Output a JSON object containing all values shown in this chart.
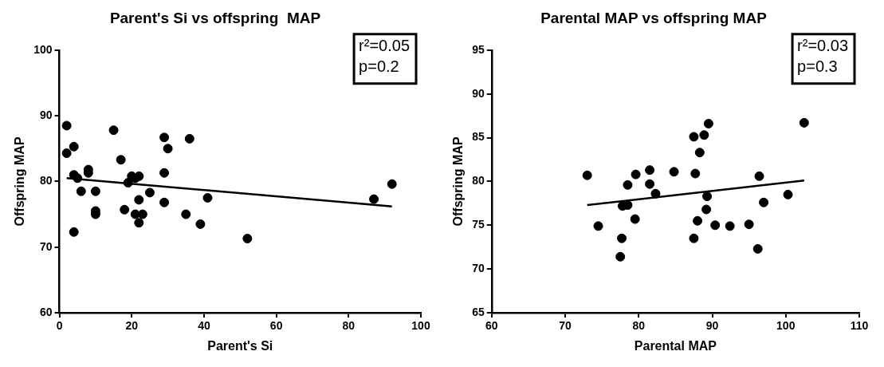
{
  "chart_data": [
    {
      "type": "scatter",
      "title": "Parent's Si vs offspring  MAP",
      "xlabel": "Parent's Si",
      "ylabel": "Offspring MAP",
      "xlim": [
        0,
        100
      ],
      "xticks": [
        0,
        20,
        40,
        60,
        80,
        100
      ],
      "ylim": [
        60,
        100
      ],
      "yticks": [
        60,
        70,
        80,
        90,
        100
      ],
      "grid": false,
      "legend": false,
      "annotations": [
        "r²=0.05",
        "p=0.2"
      ],
      "series": [
        {
          "marker": "circle",
          "color": "#000000",
          "x": [
            2,
            2,
            4,
            4,
            4,
            5,
            6,
            8,
            8,
            10,
            10,
            10,
            15,
            17,
            18,
            19,
            20,
            21,
            21,
            22,
            22,
            22,
            23,
            25,
            29,
            29,
            29,
            30,
            35,
            36,
            39,
            41,
            52,
            87,
            92
          ],
          "values": [
            88.5,
            84.3,
            85.3,
            72.3,
            81,
            80.5,
            78.5,
            81.8,
            81.3,
            75.5,
            75,
            78.5,
            87.8,
            83.3,
            75.7,
            79.8,
            80.8,
            80.5,
            75,
            73.7,
            77.2,
            80.8,
            75,
            78.3,
            86.7,
            76.8,
            81.3,
            85,
            75,
            86.5,
            73.5,
            77.5,
            71.3,
            77.3,
            79.6
          ]
        },
        {
          "type": "line",
          "marker": "none",
          "color": "#000000",
          "x": [
            2,
            92
          ],
          "values": [
            80.5,
            76.2
          ]
        }
      ]
    },
    {
      "type": "scatter",
      "title": "Parental MAP vs offspring MAP",
      "xlabel": "Parental MAP",
      "ylabel": "Offspring MAP",
      "xlim": [
        60,
        110
      ],
      "xticks": [
        60,
        70,
        80,
        90,
        100,
        110
      ],
      "ylim": [
        65,
        95
      ],
      "yticks": [
        65,
        70,
        75,
        80,
        85,
        90,
        95
      ],
      "grid": false,
      "legend": false,
      "annotations": [
        "r²=0.03",
        "p=0.3"
      ],
      "series": [
        {
          "marker": "circle",
          "color": "#000000",
          "x": [
            73,
            74.5,
            77.5,
            77.7,
            77.8,
            78.5,
            78.5,
            79.5,
            79.6,
            81.5,
            81.5,
            82.3,
            84.8,
            87.5,
            87.5,
            87.7,
            88,
            88.3,
            88.9,
            89.2,
            89.3,
            89.5,
            90.4,
            92.4,
            95,
            96.2,
            96.4,
            97,
            100.3,
            102.5
          ],
          "values": [
            80.7,
            74.9,
            71.4,
            73.5,
            77.2,
            77.3,
            79.6,
            75.7,
            80.8,
            81.3,
            79.7,
            78.6,
            81.1,
            85.1,
            73.5,
            80.9,
            75.5,
            83.3,
            85.3,
            76.8,
            78.3,
            86.6,
            75,
            74.9,
            75.1,
            72.3,
            80.6,
            77.6,
            78.5,
            86.7
          ]
        },
        {
          "type": "line",
          "marker": "none",
          "color": "#000000",
          "x": [
            73,
            102.5
          ],
          "values": [
            77.3,
            80.1
          ]
        }
      ]
    }
  ]
}
